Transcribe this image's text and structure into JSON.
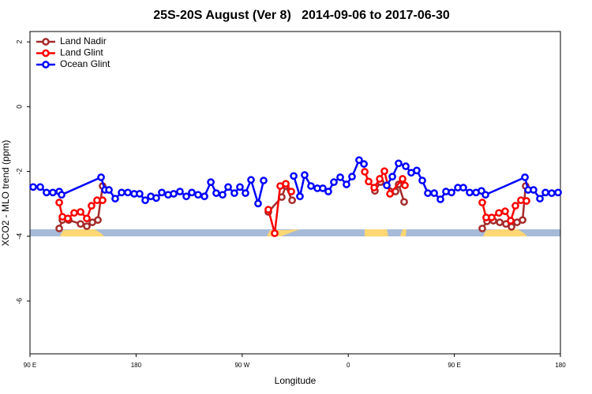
{
  "chart_data": {
    "type": "line",
    "title": "25S-20S August (Ver 8)   2014-09-06 to 2017-06-30",
    "x_label": "Longitude",
    "y_label": "XCO2 - MLO trend (ppm)",
    "xlim": [
      90,
      540
    ],
    "ylim": [
      -7.63,
      2.32
    ],
    "xticks": [
      {
        "value": 90,
        "label": "90 E"
      },
      {
        "value": 180,
        "label": "180"
      },
      {
        "value": 270,
        "label": "90 W"
      },
      {
        "value": 360,
        "label": "0"
      },
      {
        "value": 450,
        "label": "90 E"
      },
      {
        "value": 540,
        "label": "180"
      }
    ],
    "yticks": [
      2,
      0,
      -2,
      -4,
      -6
    ],
    "legend": "top-left",
    "series": [
      {
        "name": "Land Nadir",
        "color": "#a52a2a",
        "x": [
          114.8,
          117.5,
          122.8,
          132.9,
          138.2,
          142.9,
          147.6,
          151.6,
          null,
          292.2,
          303.6,
          307,
          312.4,
          null,
          382.6,
          387.4,
          400.1,
          402.7,
          407.4,
          null,
          473.7,
          477.7,
          483.1,
          488.5,
          493.8,
          498.5,
          503.2,
          507.9,
          510.5
        ],
        "values": [
          -3.76,
          -3.5,
          -3.5,
          -3.62,
          -3.69,
          -3.57,
          -3.5,
          -2.45,
          null,
          -3.25,
          -2.79,
          -2.45,
          -2.89,
          null,
          -2.6,
          -2.33,
          -2.62,
          -2.4,
          -2.94,
          null,
          -3.76,
          -3.54,
          -3.52,
          -3.57,
          -3.62,
          -3.71,
          -3.57,
          -3.5,
          -2.45
        ]
      },
      {
        "name": "Land Glint",
        "color": "#ff0000",
        "x": [
          114.8,
          117.5,
          122.1,
          127.5,
          132.9,
          138.2,
          142.2,
          146.9,
          151.6,
          null,
          292.2,
          297.6,
          302.3,
          307,
          311.7,
          null,
          374,
          377.3,
          382,
          386.7,
          390.7,
          395.4,
          406.1,
          408.1,
          null,
          473.7,
          477,
          481.7,
          487.8,
          493.1,
          497.8,
          501.8,
          506.5,
          511.2
        ],
        "values": [
          -2.96,
          -3.4,
          -3.45,
          -3.28,
          -3.25,
          -3.45,
          -3.06,
          -2.89,
          -2.89,
          null,
          -3.18,
          -3.91,
          -2.45,
          -2.38,
          -2.62,
          null,
          -2.01,
          -2.31,
          -2.5,
          -2.23,
          -1.99,
          -2.69,
          -2.23,
          -2.43,
          null,
          -2.96,
          -3.42,
          -3.42,
          -3.28,
          -3.23,
          -3.52,
          -3.06,
          -2.89,
          -2.91
        ]
      },
      {
        "name": "Ocean Glint",
        "color": "#0000ff",
        "x": [
          92.7,
          98.7,
          104,
          109.4,
          114.8,
          116.8,
          150.3,
          153.6,
          157,
          162.3,
          167.7,
          173,
          178.4,
          183,
          187.8,
          192.5,
          197.1,
          201.8,
          207.2,
          211.9,
          217.2,
          222.6,
          227.3,
          232.6,
          238,
          243.4,
          248,
          253.4,
          258.1,
          263.4,
          268.1,
          272.8,
          277.5,
          283.5,
          288.2,
          null,
          313.7,
          319,
          323,
          328.4,
          333.8,
          338.4,
          343.1,
          347.8,
          353.2,
          358.5,
          363.2,
          369.2,
          373.3,
          null,
          392.7,
          397.4,
          402.7,
          408.8,
          413.4,
          418.1,
          422.8,
          427.5,
          432.9,
          438.2,
          442.9,
          447.6,
          453,
          457.6,
          463,
          468.4,
          473,
          476.4,
          509.9,
          512.6,
          517.2,
          522.6,
          527.3,
          532.6,
          538
        ],
        "values": [
          -2.48,
          -2.48,
          -2.65,
          -2.65,
          -2.62,
          -2.72,
          -2.18,
          -2.57,
          -2.57,
          -2.84,
          -2.65,
          -2.65,
          -2.69,
          -2.69,
          -2.89,
          -2.77,
          -2.82,
          -2.65,
          -2.72,
          -2.69,
          -2.62,
          -2.77,
          -2.65,
          -2.72,
          -2.77,
          -2.33,
          -2.67,
          -2.72,
          -2.48,
          -2.67,
          -2.48,
          -2.67,
          -2.26,
          -2.99,
          -2.28,
          null,
          -2.14,
          -2.77,
          -2.11,
          -2.45,
          -2.52,
          -2.52,
          -2.62,
          -2.33,
          -2.18,
          -2.4,
          -2.16,
          -1.65,
          -1.77,
          null,
          -2.43,
          -2.16,
          -1.75,
          -1.84,
          -2.04,
          -1.97,
          -2.28,
          -2.67,
          -2.67,
          -2.86,
          -2.62,
          -2.65,
          -2.5,
          -2.5,
          -2.65,
          -2.65,
          -2.6,
          -2.72,
          -2.18,
          -2.57,
          -2.57,
          -2.84,
          -2.65,
          -2.67,
          -2.65
        ]
      }
    ]
  }
}
